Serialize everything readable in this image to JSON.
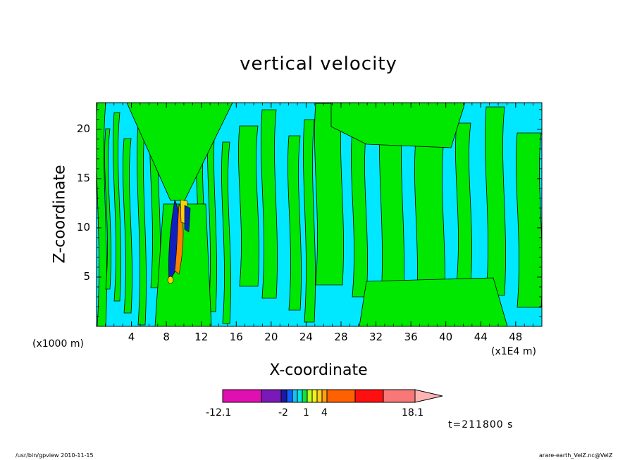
{
  "chart_data": {
    "type": "heatmap",
    "title": "vertical velocity",
    "xlabel": "X-coordinate",
    "ylabel": "Z-coordinate",
    "x_unit_left": "(x1000 m)",
    "x_unit_right": "(x1E4 m)",
    "x_ticks": [
      "4",
      "8",
      "12",
      "16",
      "20",
      "24",
      "28",
      "32",
      "36",
      "40",
      "44",
      "48"
    ],
    "y_ticks": [
      "5",
      "10",
      "15",
      "20"
    ],
    "xlim": [
      0,
      51
    ],
    "ylim": [
      0,
      22.7
    ],
    "colorbar": {
      "min_label": "-12.1",
      "max_label": "18.1",
      "tick_labels": [
        "-2",
        "1",
        "4"
      ],
      "colors": [
        "#e010b0",
        "#7a18b8",
        "#1a1aa0",
        "#1060ff",
        "#18c0f0",
        "#00e8e8",
        "#10e040",
        "#c0ff20",
        "#f0f020",
        "#ffd020",
        "#ffa010",
        "#ff6000",
        "#ff1010",
        "#f87878",
        "#ffb4b4"
      ]
    },
    "fields": {
      "background": "#00e8ff",
      "positive": "#00e800",
      "strong_positive": "#ffd000",
      "strong_negative": "#1020c0"
    }
  },
  "time_label": "t=211800 s",
  "footer_left": "/usr/bin/gpview  2010-11-15",
  "footer_right": "arare-earth_VelZ.nc@VelZ"
}
